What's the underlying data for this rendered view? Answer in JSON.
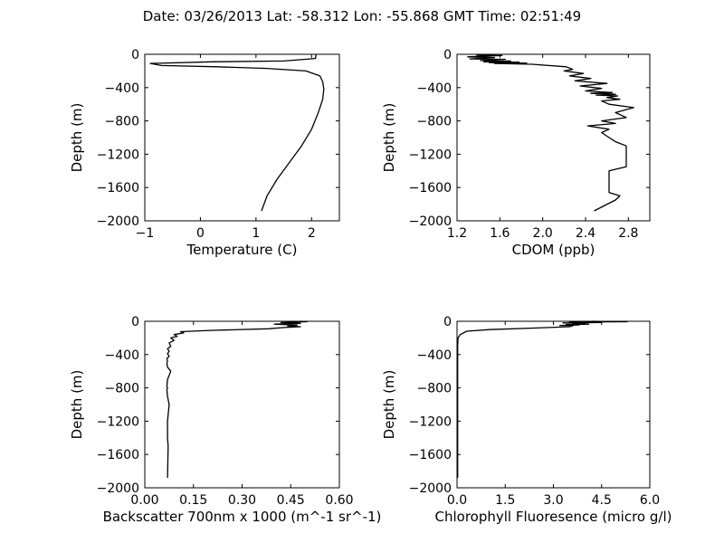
{
  "figure": {
    "title": "Date: 03/26/2013  Lat:  -58.312 Lon:  -55.868  GMT Time: 02:51:49"
  },
  "chart_data": [
    {
      "type": "line",
      "xlabel": "Temperature (C)",
      "ylabel": "Depth (m)",
      "xlim": [
        -1,
        2.5
      ],
      "ylim": [
        -2000,
        0
      ],
      "xticks": [
        -1,
        0,
        1,
        2
      ],
      "xtick_labels": [
        "−1",
        "0",
        "1",
        "2"
      ],
      "yticks": [
        0,
        -400,
        -800,
        -1200,
        -1600,
        -2000
      ],
      "ytick_labels": [
        "0",
        "−400",
        "−800",
        "−1200",
        "−1600",
        "−2000"
      ],
      "series": [
        {
          "x": [
            2.08,
            2.07,
            1.5,
            0.2,
            -0.9,
            -0.7,
            0.3,
            1.2,
            1.9,
            2.15,
            2.2,
            2.22,
            2.2,
            2.12,
            2.0,
            1.82,
            1.6,
            1.38,
            1.2,
            1.1
          ],
          "y": [
            0,
            -50,
            -80,
            -90,
            -110,
            -135,
            -150,
            -170,
            -200,
            -260,
            -330,
            -420,
            -540,
            -700,
            -900,
            -1100,
            -1300,
            -1500,
            -1700,
            -1880
          ]
        }
      ]
    },
    {
      "type": "line",
      "xlabel": "CDOM (ppb)",
      "ylabel": "Depth (m)",
      "xlim": [
        1.2,
        3.0
      ],
      "ylim": [
        -2000,
        0
      ],
      "xticks": [
        1.2,
        1.6,
        2.0,
        2.4,
        2.8
      ],
      "xtick_labels": [
        "1.2",
        "1.6",
        "2.0",
        "2.4",
        "2.8"
      ],
      "yticks": [
        0,
        -400,
        -800,
        -1200,
        -1600,
        -2000
      ],
      "ytick_labels": [
        "0",
        "−400",
        "−800",
        "−1200",
        "−1600",
        "−2000"
      ],
      "series": [
        {
          "x": [
            1.38,
            1.62,
            1.3,
            1.55,
            1.32,
            1.65,
            1.42,
            1.7,
            1.45,
            1.78,
            1.5,
            1.85,
            1.55,
            1.9,
            2.22,
            2.28,
            2.2,
            2.38,
            2.25,
            2.45,
            2.3,
            2.6,
            2.35,
            2.55,
            2.4,
            2.65,
            2.45,
            2.68,
            2.5,
            2.7,
            2.6,
            2.72,
            2.55,
            2.62,
            2.85,
            2.68,
            2.78,
            2.55,
            2.68,
            2.42,
            2.62,
            2.55,
            2.62,
            2.68,
            2.78,
            2.78,
            2.62,
            2.62,
            2.72,
            2.68,
            2.48
          ],
          "y": [
            -10,
            -15,
            -30,
            -40,
            -55,
            -60,
            -75,
            -80,
            -90,
            -95,
            -100,
            -105,
            -110,
            -120,
            -150,
            -180,
            -200,
            -230,
            -260,
            -290,
            -320,
            -350,
            -380,
            -410,
            -440,
            -460,
            -470,
            -480,
            -490,
            -500,
            -520,
            -540,
            -560,
            -600,
            -640,
            -700,
            -760,
            -800,
            -830,
            -860,
            -900,
            -940,
            -1000,
            -1050,
            -1100,
            -1350,
            -1400,
            -1660,
            -1700,
            -1750,
            -1880
          ]
        }
      ]
    },
    {
      "type": "line",
      "xlabel": "Backscatter 700nm x 1000 (m^-1 sr^-1)",
      "ylabel": "Depth (m)",
      "xlim": [
        0.0,
        0.6
      ],
      "ylim": [
        -2000,
        0
      ],
      "xticks": [
        0.0,
        0.15,
        0.3,
        0.45,
        0.6
      ],
      "xtick_labels": [
        "0.00",
        "0.15",
        "0.30",
        "0.45",
        "0.60"
      ],
      "yticks": [
        0,
        -400,
        -800,
        -1200,
        -1600,
        -2000
      ],
      "ytick_labels": [
        "0",
        "−400",
        "−800",
        "−1200",
        "−1600",
        "−2000"
      ],
      "series": [
        {
          "x": [
            0.48,
            0.5,
            0.42,
            0.48,
            0.4,
            0.47,
            0.44,
            0.48,
            0.43,
            0.38,
            0.2,
            0.11,
            0.12,
            0.09,
            0.1,
            0.08,
            0.09,
            0.075,
            0.08,
            0.07,
            0.075,
            0.07,
            0.075,
            0.068,
            0.07,
            0.068,
            0.07,
            0.08,
            0.07,
            0.068,
            0.07,
            0.068,
            0.07,
            0.075,
            0.07,
            0.07,
            0.072,
            0.07
          ],
          "y": [
            0,
            -5,
            -15,
            -25,
            -35,
            -45,
            -55,
            -65,
            -75,
            -90,
            -110,
            -125,
            -140,
            -160,
            -180,
            -200,
            -230,
            -260,
            -300,
            -330,
            -360,
            -390,
            -420,
            -450,
            -480,
            -500,
            -550,
            -600,
            -700,
            -780,
            -800,
            -820,
            -900,
            -1000,
            -1200,
            -1400,
            -1500,
            -1880
          ]
        }
      ]
    },
    {
      "type": "line",
      "xlabel": "Chlorophyll Fluoresence (micro g/l)",
      "ylabel": "Depth (m)",
      "xlim": [
        0.0,
        6.0
      ],
      "ylim": [
        -2000,
        0
      ],
      "xticks": [
        0.0,
        1.5,
        3.0,
        4.5,
        6.0
      ],
      "xtick_labels": [
        "0.0",
        "1.5",
        "3.0",
        "4.5",
        "6.0"
      ],
      "yticks": [
        0,
        -400,
        -800,
        -1200,
        -1600,
        -2000
      ],
      "ytick_labels": [
        "0",
        "−400",
        "−800",
        "−1200",
        "−1600",
        "−2000"
      ],
      "series": [
        {
          "x": [
            4.2,
            5.3,
            3.5,
            4.5,
            3.3,
            4.0,
            3.6,
            4.1,
            3.4,
            3.8,
            3.2,
            3.6,
            3.5,
            2.5,
            1.0,
            0.3,
            0.1,
            0.03,
            0.02,
            0.02
          ],
          "y": [
            0,
            -5,
            -10,
            -15,
            -20,
            -25,
            -30,
            -35,
            -40,
            -45,
            -50,
            -55,
            -65,
            -80,
            -100,
            -120,
            -160,
            -200,
            -300,
            -1880
          ]
        }
      ]
    }
  ]
}
